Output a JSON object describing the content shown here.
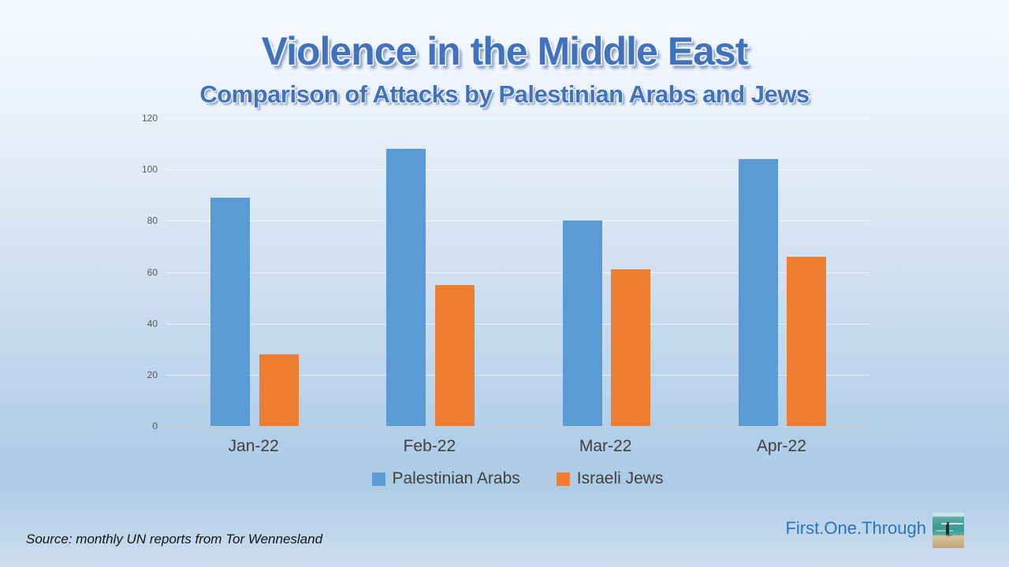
{
  "slide": {
    "title": "Violence in the Middle East",
    "subtitle": "Comparison of Attacks by Palestinian Arabs and Jews",
    "source_note": "Source: monthly UN reports from Tor Wennesland",
    "brand": "First.One.Through",
    "brand_image": "beach-photo-person-facing-sea",
    "colors": {
      "title_blue": "#4372bd",
      "brand_blue": "#2e74b8",
      "axis_text": "#595959",
      "category_text": "#404040",
      "series_blue": "#5b9bd5",
      "series_orange": "#ed7d31"
    }
  },
  "chart_data": {
    "type": "bar",
    "title": "",
    "xlabel": "",
    "ylabel": "",
    "categories": [
      "Jan-22",
      "Feb-22",
      "Mar-22",
      "Apr-22"
    ],
    "series": [
      {
        "name": "Palestinian Arabs",
        "color": "#5b9bd5",
        "values": [
          89,
          108,
          80,
          104
        ]
      },
      {
        "name": "Israeli Jews",
        "color": "#ed7d31",
        "values": [
          28,
          55,
          61,
          66
        ]
      }
    ],
    "ylim": [
      0,
      120
    ],
    "ytick_step": 20,
    "yticks": [
      0,
      20,
      40,
      60,
      80,
      100,
      120
    ],
    "grid": true,
    "legend_position": "bottom"
  }
}
